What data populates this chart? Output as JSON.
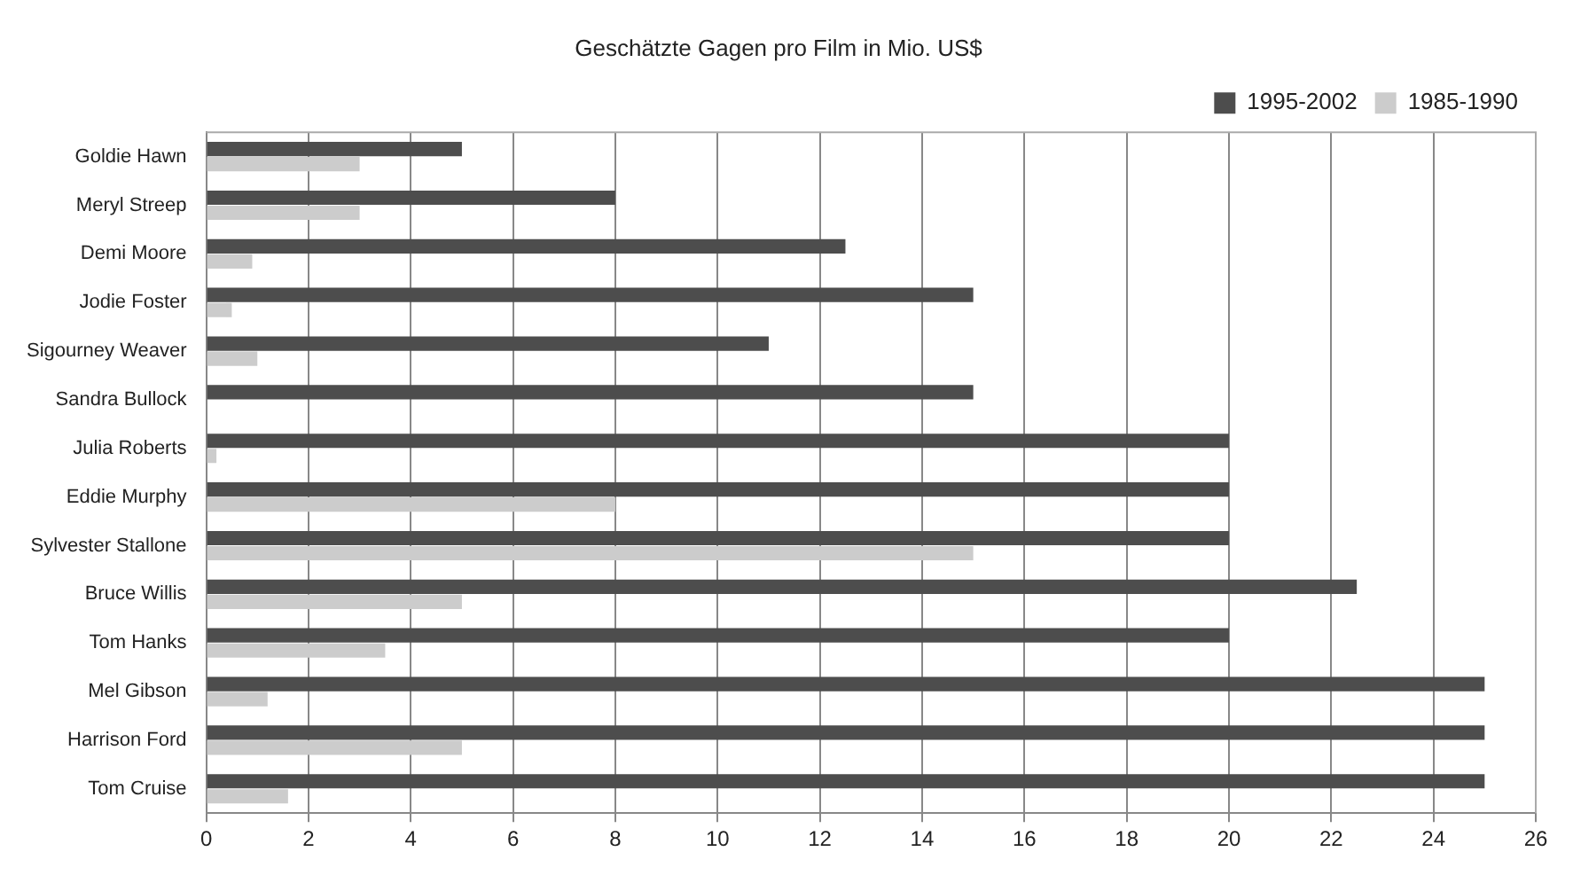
{
  "chart_data": {
    "type": "bar",
    "orientation": "horizontal",
    "title": "Geschätzte Gagen pro Film in Mio. US$",
    "categories": [
      "Goldie Hawn",
      "Meryl Streep",
      "Demi Moore",
      "Jodie Foster",
      "Sigourney Weaver",
      "Sandra Bullock",
      "Julia Roberts",
      "Eddie Murphy",
      "Sylvester Stallone",
      "Bruce Willis",
      "Tom Hanks",
      "Mel Gibson",
      "Harrison Ford",
      "Tom Cruise"
    ],
    "series": [
      {
        "name": "1995-2002",
        "color": "#4d4d4d",
        "values": [
          5,
          8,
          12.5,
          15,
          11,
          15,
          20,
          20,
          20,
          22.5,
          20,
          25,
          25,
          25
        ]
      },
      {
        "name": "1985-1990",
        "color": "#cccccc",
        "values": [
          3,
          3,
          0.9,
          0.5,
          1,
          null,
          0.2,
          8,
          15,
          5,
          3.5,
          1.2,
          5,
          1.6
        ]
      }
    ],
    "xlim": [
      0,
      26
    ],
    "xticks": [
      0,
      2,
      4,
      6,
      8,
      10,
      12,
      14,
      16,
      18,
      20,
      22,
      24,
      26
    ],
    "grid": "x",
    "legend": "top right"
  }
}
